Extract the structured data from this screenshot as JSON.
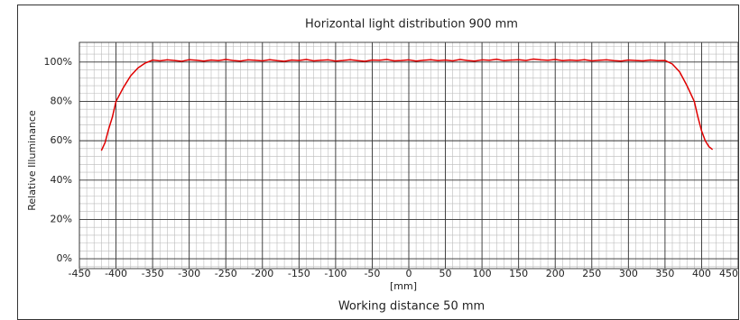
{
  "chart_data": {
    "type": "line",
    "title": "Horizontal light distribution 900 mm",
    "x_label": "[mm]",
    "subtitle": "Working distance 50 mm",
    "y_label": "Relative Illuminance",
    "color": "#e00000",
    "grid": true,
    "xlim": [
      -450,
      450
    ],
    "ylim": [
      -5,
      110
    ],
    "xticks": [
      -450,
      -400,
      -350,
      -300,
      -250,
      -200,
      -150,
      -100,
      -50,
      0,
      50,
      100,
      150,
      200,
      250,
      300,
      350,
      400,
      450
    ],
    "yticks": [
      {
        "value": 0,
        "label": "0%"
      },
      {
        "value": 20,
        "label": "20%"
      },
      {
        "value": 40,
        "label": "40%"
      },
      {
        "value": 60,
        "label": "60%"
      },
      {
        "value": 80,
        "label": "80%"
      },
      {
        "value": 100,
        "label": "100%"
      }
    ],
    "x": [
      -420,
      -415,
      -410,
      -405,
      -400,
      -390,
      -380,
      -370,
      -360,
      -350,
      -340,
      -330,
      -320,
      -310,
      -300,
      -290,
      -280,
      -270,
      -260,
      -250,
      -240,
      -230,
      -220,
      -210,
      -200,
      -190,
      -180,
      -170,
      -160,
      -150,
      -140,
      -130,
      -120,
      -110,
      -100,
      -90,
      -80,
      -70,
      -60,
      -50,
      -40,
      -30,
      -20,
      -10,
      0,
      10,
      20,
      30,
      40,
      50,
      60,
      70,
      80,
      90,
      100,
      110,
      120,
      130,
      140,
      150,
      160,
      170,
      180,
      190,
      200,
      210,
      220,
      230,
      240,
      250,
      260,
      270,
      280,
      290,
      300,
      310,
      320,
      330,
      340,
      350,
      360,
      370,
      380,
      390,
      395,
      400,
      405,
      410,
      415
    ],
    "values": [
      55,
      59,
      66,
      72,
      80,
      87,
      93,
      97,
      99.5,
      101,
      100.6,
      101.1,
      100.8,
      100.4,
      101.2,
      100.9,
      100.5,
      101.0,
      100.7,
      101.3,
      100.8,
      100.5,
      101.1,
      100.9,
      100.6,
      101.2,
      100.7,
      100.4,
      101.0,
      100.8,
      101.3,
      100.6,
      100.9,
      101.1,
      100.5,
      100.8,
      101.2,
      100.7,
      100.4,
      101.0,
      100.9,
      101.3,
      100.6,
      100.8,
      101.1,
      100.5,
      100.9,
      101.2,
      100.7,
      101.0,
      100.6,
      101.3,
      100.8,
      100.5,
      101.1,
      100.9,
      101.4,
      100.7,
      101.0,
      101.2,
      100.8,
      101.5,
      101.1,
      100.9,
      101.3,
      100.7,
      101.0,
      100.8,
      101.2,
      100.6,
      100.9,
      101.1,
      100.7,
      100.5,
      101.0,
      100.8,
      100.6,
      101.0,
      100.7,
      100.8,
      99,
      95,
      88,
      80,
      72,
      65,
      60,
      57,
      55.5
    ]
  }
}
